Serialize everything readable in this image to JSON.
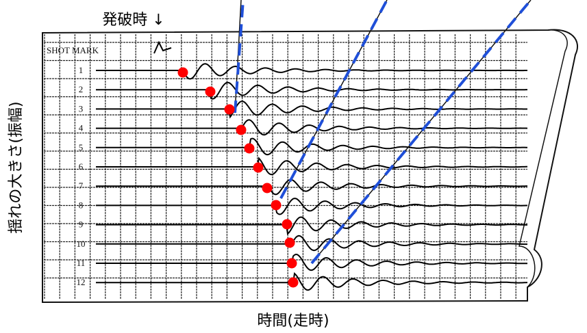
{
  "title": "発破時 ↓",
  "shot_mark": "SHOT MARK",
  "trace_labels": [
    "1",
    "2",
    "3",
    "4",
    "5",
    "6",
    "7",
    "8",
    "9",
    "10",
    "11",
    "12"
  ],
  "y_label": "揺れの大きさ(振幅)",
  "x_label": "時間(走時)"
}
